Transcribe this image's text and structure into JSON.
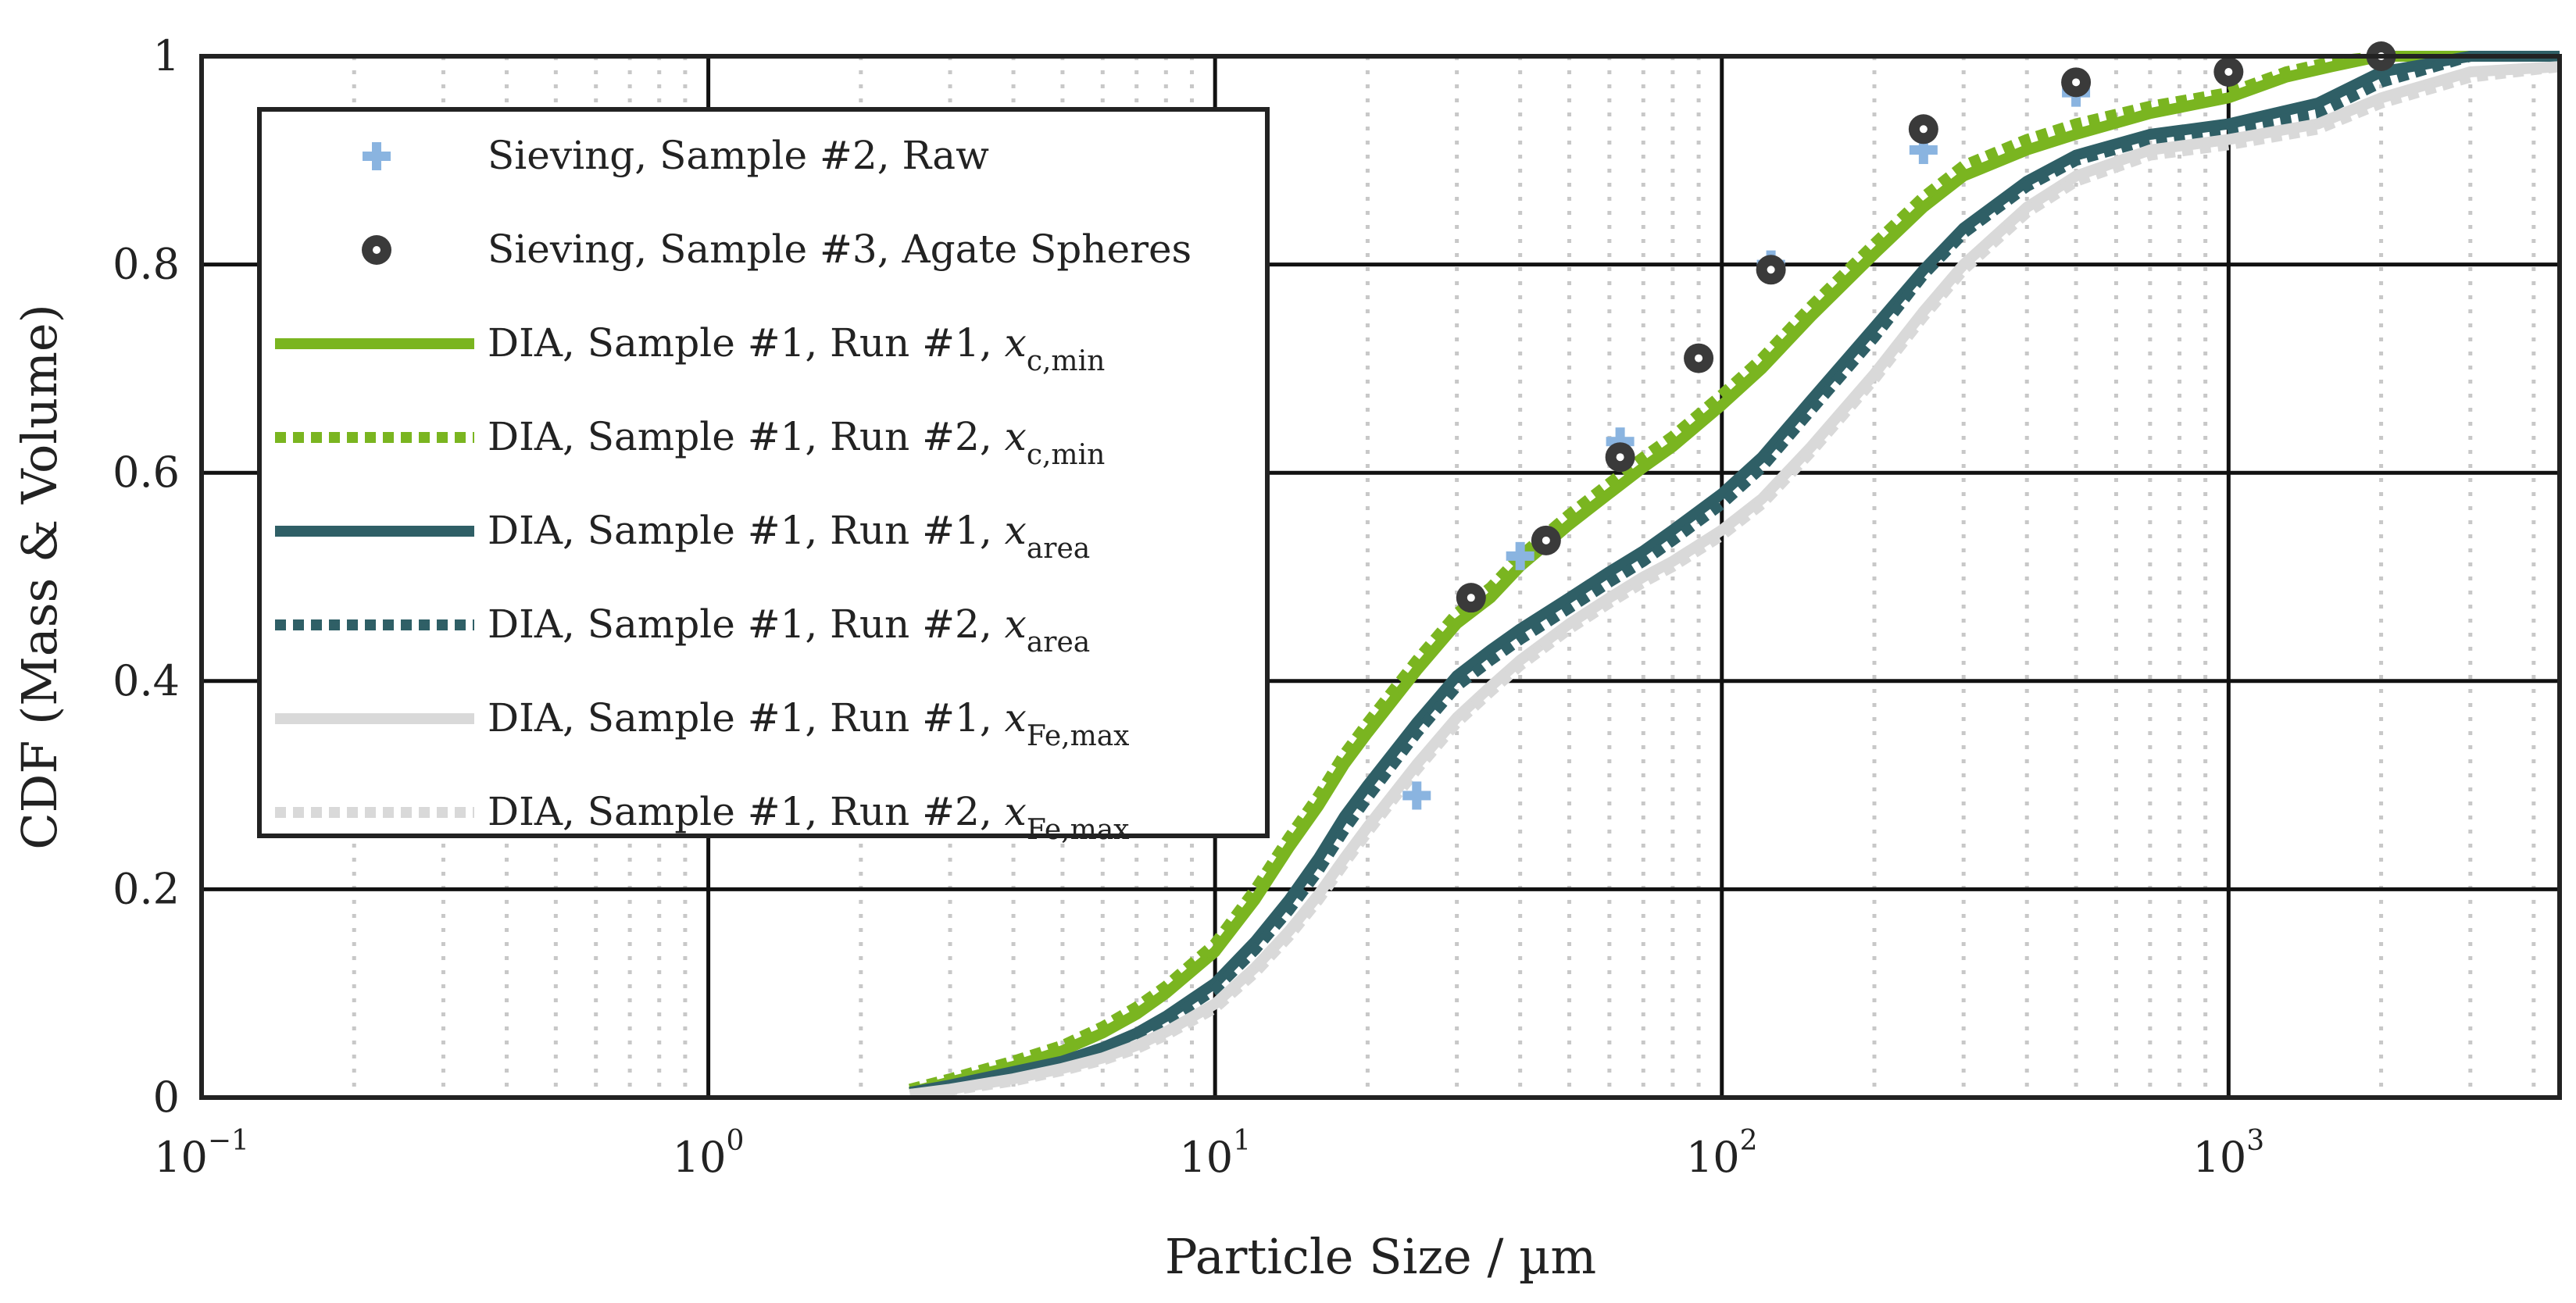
{
  "chart_data": {
    "type": "line",
    "xlabel": "Particle Size / µm",
    "ylabel": "CDF (Mass & Volume)",
    "xscale": "log",
    "xlim": [
      0.1,
      4500
    ],
    "ylim": [
      0,
      1
    ],
    "x_ticks": [
      {
        "value": 0.1,
        "base": "10",
        "exp": "−1"
      },
      {
        "value": 1,
        "base": "10",
        "exp": "0"
      },
      {
        "value": 10,
        "base": "10",
        "exp": "1"
      },
      {
        "value": 100,
        "base": "10",
        "exp": "2"
      },
      {
        "value": 1000,
        "base": "10",
        "exp": "3"
      }
    ],
    "y_ticks": [
      {
        "value": 0,
        "label": "0"
      },
      {
        "value": 0.2,
        "label": "0.2"
      },
      {
        "value": 0.4,
        "label": "0.4"
      },
      {
        "value": 0.6,
        "label": "0.6"
      },
      {
        "value": 0.8,
        "label": "0.8"
      },
      {
        "value": 1,
        "label": "1"
      }
    ],
    "grid": true,
    "legend_position": "upper-left",
    "series": [
      {
        "id": "sieve-raw",
        "name": "Sieving, Sample #2, Raw",
        "label_main": "Sieving, Sample #2, Raw",
        "label_sub": "",
        "kind": "scatter",
        "marker": "plus",
        "color": "#8ab4e0",
        "x": [
          25,
          40,
          63,
          125,
          250,
          500,
          1000,
          2000
        ],
        "y": [
          0.29,
          0.52,
          0.63,
          0.8,
          0.91,
          0.965,
          0.985,
          1.0
        ]
      },
      {
        "id": "sieve-agate",
        "name": "Sieving, Sample #3, Agate Spheres",
        "label_main": "Sieving, Sample #3, Agate Spheres",
        "label_sub": "",
        "kind": "scatter",
        "marker": "dot",
        "color": "#3a3a3a",
        "x": [
          32,
          45,
          63,
          90,
          125,
          250,
          500,
          1000,
          2000
        ],
        "y": [
          0.48,
          0.535,
          0.615,
          0.71,
          0.795,
          0.93,
          0.975,
          0.985,
          1.0
        ]
      },
      {
        "id": "dia-cmin-r1",
        "name": "DIA, Sample #1, Run #1, x c,min",
        "label_main": "DIA, Sample #1, Run #1, ",
        "label_var": "x",
        "label_sub": "c,min",
        "kind": "line",
        "dash": "solid",
        "color": "#7ab520",
        "x": [
          2.5,
          3,
          4,
          5,
          6,
          7,
          8,
          10,
          12,
          14,
          16,
          18,
          20,
          25,
          30,
          35,
          40,
          50,
          60,
          70,
          80,
          100,
          120,
          150,
          200,
          250,
          300,
          400,
          500,
          700,
          1000,
          1300,
          1600,
          2000,
          3000,
          4500
        ],
        "y": [
          0.005,
          0.015,
          0.03,
          0.045,
          0.062,
          0.08,
          0.1,
          0.14,
          0.19,
          0.24,
          0.28,
          0.32,
          0.35,
          0.41,
          0.455,
          0.48,
          0.51,
          0.55,
          0.58,
          0.605,
          0.625,
          0.665,
          0.7,
          0.75,
          0.81,
          0.855,
          0.885,
          0.91,
          0.925,
          0.945,
          0.96,
          0.98,
          0.99,
          1.0,
          1.0,
          1.0
        ]
      },
      {
        "id": "dia-cmin-r2",
        "name": "DIA, Sample #1, Run #2, x c,min",
        "label_main": "DIA, Sample #1, Run #2, ",
        "label_var": "x",
        "label_sub": "c,min",
        "kind": "line",
        "dash": "dotted",
        "color": "#7ab520",
        "x": [
          2.5,
          3,
          4,
          5,
          6,
          7,
          8,
          10,
          12,
          14,
          16,
          18,
          20,
          25,
          30,
          35,
          40,
          50,
          60,
          70,
          80,
          100,
          120,
          150,
          200,
          250,
          300,
          400,
          500,
          700,
          1000,
          1300,
          1600,
          2000,
          3000,
          4500
        ],
        "y": [
          0.008,
          0.018,
          0.035,
          0.05,
          0.068,
          0.087,
          0.107,
          0.148,
          0.2,
          0.25,
          0.29,
          0.33,
          0.36,
          0.42,
          0.465,
          0.49,
          0.52,
          0.56,
          0.59,
          0.615,
          0.635,
          0.675,
          0.71,
          0.76,
          0.82,
          0.865,
          0.895,
          0.92,
          0.935,
          0.952,
          0.965,
          0.985,
          0.995,
          1.0,
          1.0,
          1.0
        ]
      },
      {
        "id": "dia-area-r1",
        "name": "DIA, Sample #1, Run #1, x area",
        "label_main": "DIA, Sample #1, Run #1, ",
        "label_var": "x",
        "label_sub": "area",
        "kind": "line",
        "dash": "solid",
        "color": "#2f5f66",
        "x": [
          2.5,
          3,
          4,
          5,
          6,
          7,
          8,
          10,
          12,
          14,
          16,
          18,
          20,
          25,
          30,
          35,
          40,
          50,
          60,
          70,
          80,
          100,
          120,
          150,
          200,
          250,
          300,
          400,
          500,
          700,
          1000,
          1500,
          2000,
          3000,
          4500
        ],
        "y": [
          0.005,
          0.012,
          0.025,
          0.035,
          0.048,
          0.062,
          0.078,
          0.11,
          0.15,
          0.19,
          0.23,
          0.27,
          0.3,
          0.36,
          0.405,
          0.43,
          0.45,
          0.48,
          0.505,
          0.525,
          0.545,
          0.58,
          0.615,
          0.67,
          0.74,
          0.795,
          0.835,
          0.88,
          0.905,
          0.925,
          0.935,
          0.955,
          0.985,
          1.0,
          1.0
        ]
      },
      {
        "id": "dia-area-r2",
        "name": "DIA, Sample #1, Run #2, x area",
        "label_main": "DIA, Sample #1, Run #2, ",
        "label_var": "x",
        "label_sub": "area",
        "kind": "line",
        "dash": "dotted",
        "color": "#2f5f66",
        "x": [
          2.5,
          3,
          4,
          5,
          6,
          7,
          8,
          10,
          12,
          14,
          16,
          18,
          20,
          25,
          30,
          35,
          40,
          50,
          60,
          70,
          80,
          100,
          120,
          150,
          200,
          250,
          300,
          400,
          500,
          700,
          1000,
          1500,
          2000,
          3000,
          4500
        ],
        "y": [
          0.004,
          0.01,
          0.022,
          0.032,
          0.045,
          0.058,
          0.073,
          0.104,
          0.142,
          0.18,
          0.218,
          0.257,
          0.288,
          0.35,
          0.395,
          0.42,
          0.44,
          0.47,
          0.495,
          0.515,
          0.535,
          0.57,
          0.605,
          0.66,
          0.73,
          0.79,
          0.83,
          0.875,
          0.9,
          0.92,
          0.93,
          0.945,
          0.975,
          1.0,
          1.0
        ]
      },
      {
        "id": "dia-fe-r1",
        "name": "DIA, Sample #1, Run #1, x Fe,max",
        "label_main": "DIA, Sample #1, Run #1, ",
        "label_var": "x",
        "label_sub": "Fe,max",
        "kind": "line",
        "dash": "solid",
        "color": "#d9d9d9",
        "x": [
          2.5,
          3,
          4,
          5,
          6,
          7,
          8,
          10,
          12,
          14,
          16,
          18,
          20,
          25,
          30,
          35,
          40,
          50,
          60,
          70,
          80,
          100,
          120,
          150,
          200,
          250,
          300,
          400,
          500,
          700,
          1000,
          1500,
          2000,
          3000,
          4500
        ],
        "y": [
          0.003,
          0.008,
          0.018,
          0.028,
          0.038,
          0.05,
          0.063,
          0.09,
          0.125,
          0.16,
          0.195,
          0.23,
          0.26,
          0.32,
          0.365,
          0.395,
          0.42,
          0.455,
          0.48,
          0.5,
          0.515,
          0.545,
          0.575,
          0.625,
          0.695,
          0.755,
          0.8,
          0.855,
          0.885,
          0.91,
          0.92,
          0.935,
          0.96,
          0.985,
          0.99
        ]
      },
      {
        "id": "dia-fe-r2",
        "name": "DIA, Sample #1, Run #2, x Fe,max",
        "label_main": "DIA, Sample #1, Run #2, ",
        "label_var": "x",
        "label_sub": "Fe,max",
        "kind": "line",
        "dash": "dotted",
        "color": "#d9d9d9",
        "x": [
          2.5,
          3,
          4,
          5,
          6,
          7,
          8,
          10,
          12,
          14,
          16,
          18,
          20,
          25,
          30,
          35,
          40,
          50,
          60,
          70,
          80,
          100,
          120,
          150,
          200,
          250,
          300,
          400,
          500,
          700,
          1000,
          1500,
          2000,
          3000,
          4500
        ],
        "y": [
          0.003,
          0.007,
          0.016,
          0.026,
          0.036,
          0.047,
          0.06,
          0.086,
          0.12,
          0.155,
          0.19,
          0.225,
          0.255,
          0.315,
          0.36,
          0.39,
          0.415,
          0.45,
          0.475,
          0.495,
          0.51,
          0.54,
          0.57,
          0.62,
          0.69,
          0.75,
          0.795,
          0.85,
          0.88,
          0.905,
          0.915,
          0.93,
          0.955,
          0.98,
          0.99
        ]
      }
    ]
  }
}
